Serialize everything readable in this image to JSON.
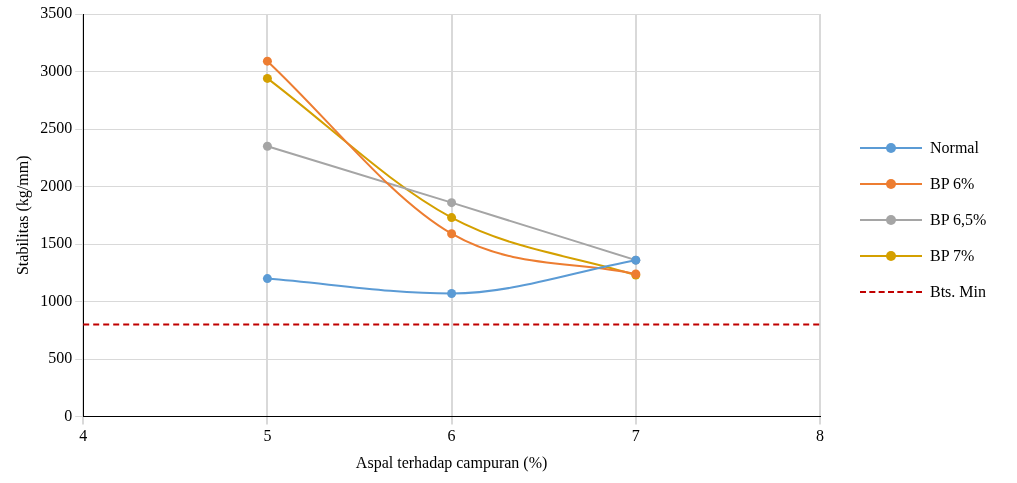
{
  "chart_data": {
    "type": "line",
    "xlabel": "Aspal terhadap campuran (%)",
    "ylabel": "Stabilitas (kg/mm)",
    "x": [
      5,
      6,
      7
    ],
    "series": [
      {
        "name": "Normal",
        "color": "#5b9bd5",
        "values": [
          1200,
          1070,
          1360
        ]
      },
      {
        "name": "BP 6%",
        "color": "#ed7d31",
        "values": [
          3090,
          1590,
          1240
        ]
      },
      {
        "name": "BP 6,5%",
        "color": "#a5a5a5",
        "values": [
          2350,
          1860,
          1360
        ]
      },
      {
        "name": "BP 7%",
        "color": "#d4a000",
        "values": [
          2940,
          1730,
          1230
        ]
      }
    ],
    "xlim": [
      4,
      8
    ],
    "xticks": [
      4,
      5,
      6,
      7,
      8
    ],
    "ylim": [
      0,
      3500
    ],
    "yticks": [
      0,
      500,
      1000,
      1500,
      2000,
      2500,
      3000,
      3500
    ],
    "ref_lines": [
      {
        "axis": "y",
        "value": 800,
        "label": "Bts. Min",
        "color": "#c00000",
        "line_style": "dashed"
      }
    ],
    "grid": true,
    "legend": "right",
    "marker": "circle",
    "line_style": "solid"
  }
}
